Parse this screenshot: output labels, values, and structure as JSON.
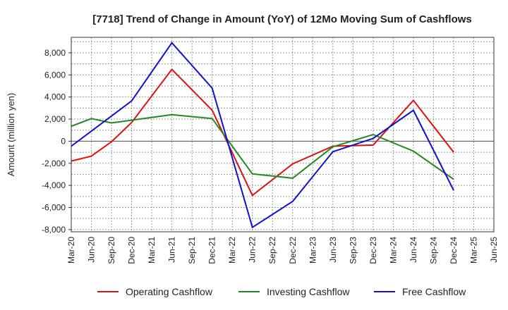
{
  "chart_data": {
    "type": "line",
    "title": "[7718]  Trend of Change in Amount (YoY) of 12Mo Moving Sum of Cashflows",
    "xlabel": "",
    "ylabel": "Amount (million yen)",
    "ylim": [
      -8200,
      9400
    ],
    "yticks": [
      8000,
      6000,
      4000,
      2000,
      0,
      -2000,
      -4000,
      -6000,
      -8000
    ],
    "ytick_labels": [
      "8,000",
      "6,000",
      "4,000",
      "2,000",
      "0",
      "-2,000",
      "-4,000",
      "-6,000",
      "-8,000"
    ],
    "categories": [
      "Mar-20",
      "Jun-20",
      "Sep-20",
      "Dec-20",
      "Mar-21",
      "Jun-21",
      "Sep-21",
      "Dec-21",
      "Mar-22",
      "Jun-22",
      "Sep-22",
      "Dec-22",
      "Mar-23",
      "Jun-23",
      "Sep-23",
      "Dec-23",
      "Mar-24",
      "Jun-24",
      "Sep-24",
      "Dec-24",
      "Mar-25",
      "Jun-25"
    ],
    "grid": true,
    "legend_position": "bottom",
    "series": [
      {
        "name": "Operating Cashflow",
        "color": "#dd1111",
        "values": [
          -1800,
          -1350,
          -50,
          1700,
          null,
          6500,
          null,
          2800,
          null,
          -4900,
          null,
          -2050,
          null,
          -450,
          -400,
          -350,
          null,
          3700,
          null,
          -1000,
          null,
          null
        ]
      },
      {
        "name": "Investing Cashflow",
        "color": "#228822",
        "values": [
          1350,
          2050,
          1650,
          null,
          null,
          2400,
          null,
          2050,
          null,
          -2950,
          null,
          -3350,
          null,
          -500,
          null,
          600,
          null,
          -900,
          null,
          -3450,
          null,
          null
        ]
      },
      {
        "name": "Free Cashflow",
        "color": "#1111cc",
        "values": [
          -450,
          null,
          null,
          3650,
          null,
          8900,
          null,
          4800,
          null,
          -7800,
          null,
          -5450,
          null,
          -950,
          null,
          250,
          null,
          2800,
          null,
          -4450,
          null,
          null
        ]
      }
    ]
  }
}
